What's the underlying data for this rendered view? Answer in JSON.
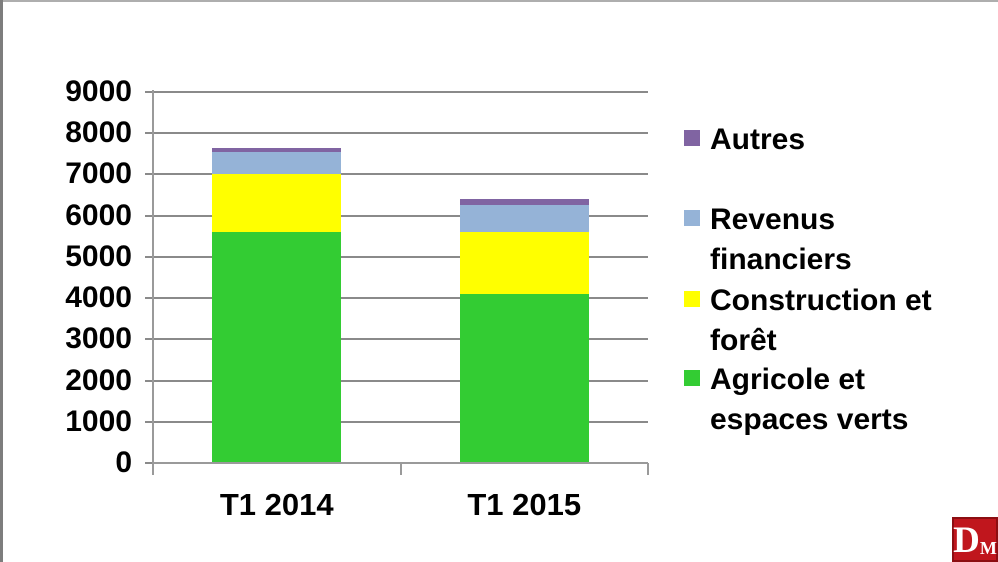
{
  "chart_data": {
    "type": "bar",
    "stacked": true,
    "title": "",
    "xlabel": "",
    "ylabel": "",
    "categories": [
      "T1 2014",
      "T1 2015"
    ],
    "series": [
      {
        "name": "Agricole et espaces verts",
        "color": "#33cc33",
        "values": [
          5600,
          4100
        ]
      },
      {
        "name": "Construction et forêt",
        "color": "#ffff00",
        "values": [
          1400,
          1500
        ]
      },
      {
        "name": "Revenus financiers",
        "color": "#95b3d7",
        "values": [
          550,
          650
        ]
      },
      {
        "name": "Autres",
        "color": "#8064a2",
        "values": [
          100,
          150
        ]
      }
    ],
    "totals": [
      7650,
      6400
    ],
    "legend": [
      {
        "label": "Autres",
        "color": "#8064a2"
      },
      {
        "label": "Revenus financiers",
        "color": "#95b3d7"
      },
      {
        "label": "Construction et forêt",
        "color": "#ffff00"
      },
      {
        "label": "Agricole et espaces verts",
        "color": "#33cc33"
      }
    ],
    "legend_position": "right",
    "grid": true,
    "ylim": [
      0,
      9000
    ],
    "yticks": [
      0,
      1000,
      2000,
      3000,
      4000,
      5000,
      6000,
      7000,
      8000,
      9000
    ]
  },
  "watermark": {
    "letter_main": "D",
    "letter_sub": "M",
    "bg_color": "#c0161d"
  }
}
